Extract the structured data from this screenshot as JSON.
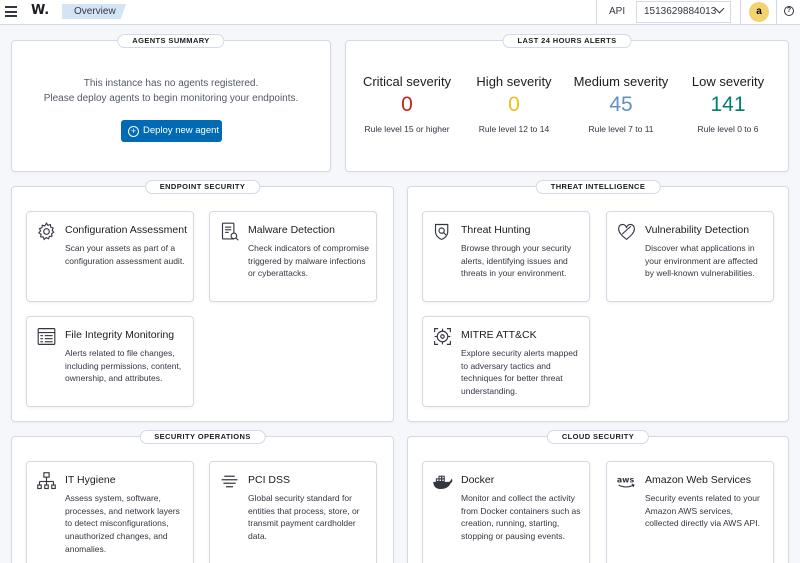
{
  "header": {
    "logo": "W.",
    "breadcrumb": "Overview",
    "api_label": "API",
    "api_id": "1513629884013",
    "avatar_letter": "a",
    "help_glyph": "?"
  },
  "agents_summary": {
    "title": "AGENTS SUMMARY",
    "message_line1": "This instance has no agents registered.",
    "message_line2": "Please deploy agents to begin monitoring your endpoints.",
    "deploy_button": "Deploy new agent"
  },
  "alerts": {
    "title": "LAST 24 HOURS ALERTS",
    "severities": [
      {
        "name": "Critical severity",
        "count": "0",
        "rule": "Rule level 15 or higher",
        "color": "#bd271e"
      },
      {
        "name": "High severity",
        "count": "0",
        "rule": "Rule level 12 to 14",
        "color": "#e7c31b"
      },
      {
        "name": "Medium severity",
        "count": "45",
        "rule": "Rule level 7 to 11",
        "color": "#6092c0"
      },
      {
        "name": "Low severity",
        "count": "141",
        "rule": "Rule level 0 to 6",
        "color": "#017d73"
      }
    ]
  },
  "sections": {
    "endpoint_security": {
      "title": "ENDPOINT SECURITY",
      "cards": [
        {
          "title": "Configuration Assessment",
          "desc": "Scan your assets as part of a configuration assessment audit.",
          "icon": "gear-icon"
        },
        {
          "title": "Malware Detection",
          "desc": "Check indicators of compromise triggered by malware infections or cyberattacks.",
          "icon": "document-icon"
        },
        {
          "title": "File Integrity Monitoring",
          "desc": "Alerts related to file changes, including permissions, content, ownership, and attributes.",
          "icon": "table-icon"
        }
      ]
    },
    "threat_intelligence": {
      "title": "THREAT INTELLIGENCE",
      "cards": [
        {
          "title": "Threat Hunting",
          "desc": "Browse through your security alerts, identifying issues and threats in your environment.",
          "icon": "shield-search-icon"
        },
        {
          "title": "Vulnerability Detection",
          "desc": "Discover what applications in your environment are affected by well-known vulnerabilities.",
          "icon": "heart-shield-icon"
        },
        {
          "title": "MITRE ATT&CK",
          "desc": "Explore security alerts mapped to adversary tactics and techniques for better threat understanding.",
          "icon": "target-icon"
        }
      ]
    },
    "security_operations": {
      "title": "SECURITY OPERATIONS",
      "cards": [
        {
          "title": "IT Hygiene",
          "desc": "Assess system, software, processes, and network layers to detect misconfigurations, unauthorized changes, and anomalies.",
          "icon": "network-icon"
        },
        {
          "title": "PCI DSS",
          "desc": "Global security standard for entities that process, store, or transmit payment cardholder data.",
          "icon": "lines-icon"
        }
      ]
    },
    "cloud_security": {
      "title": "CLOUD SECURITY",
      "cards": [
        {
          "title": "Docker",
          "desc": "Monitor and collect the activity from Docker containers such as creation, running, starting, stopping or pausing events.",
          "icon": "docker-icon"
        },
        {
          "title": "Amazon Web Services",
          "desc": "Security events related to your Amazon AWS services, collected directly via AWS API.",
          "icon": "aws-icon"
        }
      ]
    }
  }
}
